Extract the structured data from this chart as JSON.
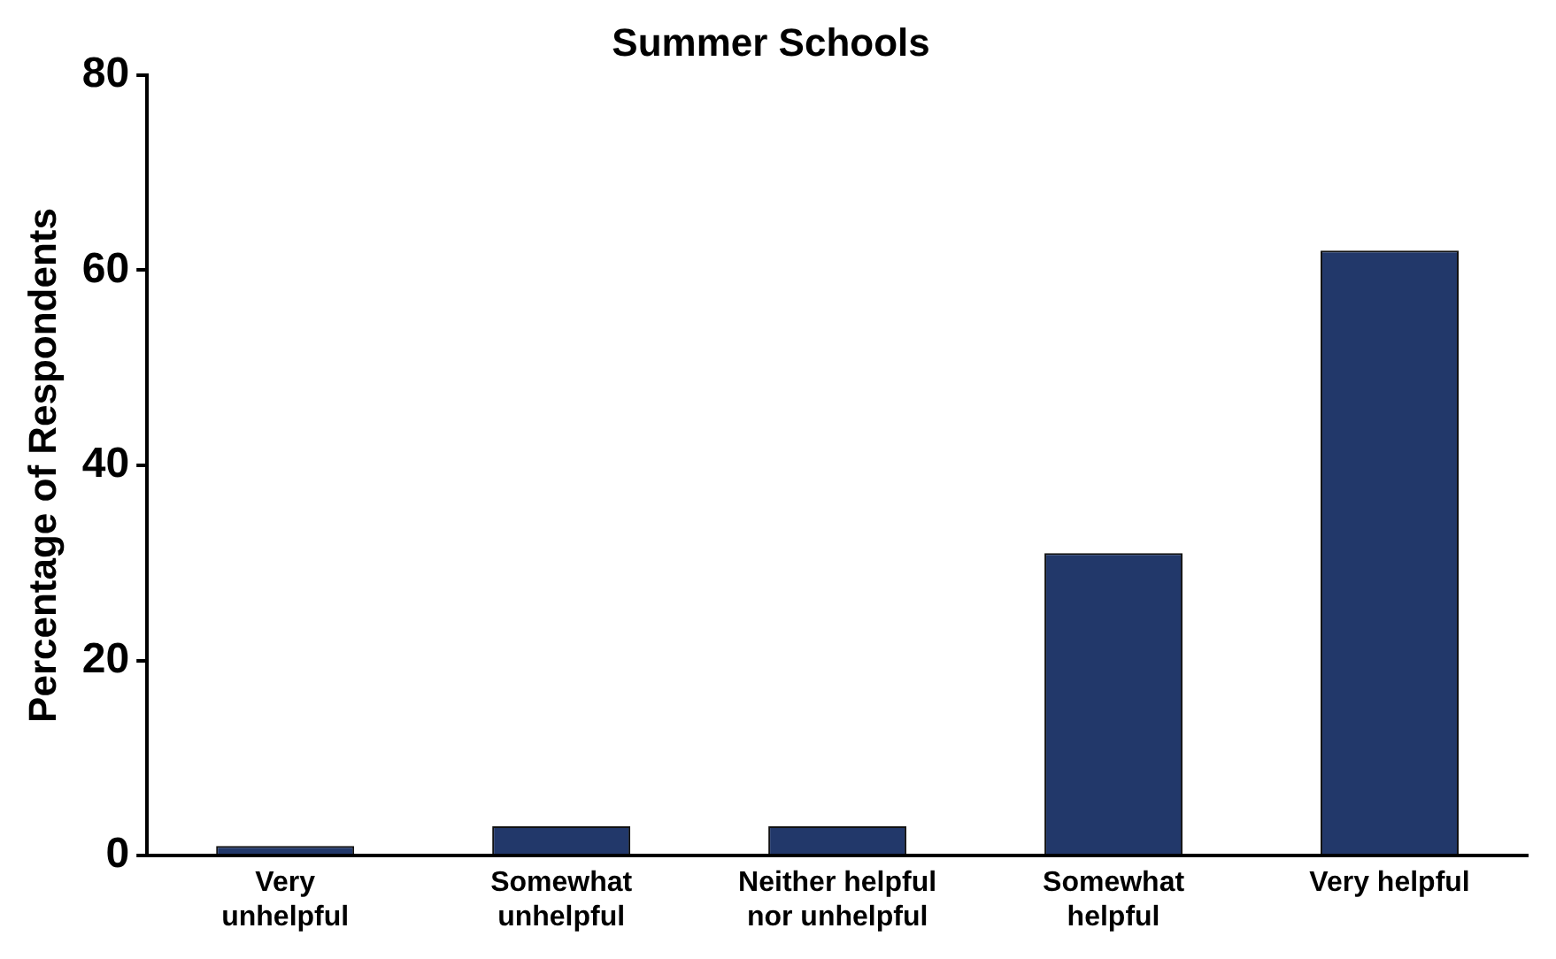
{
  "chart_data": {
    "type": "bar",
    "title": "Summer Schools",
    "ylabel": "Percentage of Respondents",
    "categories": [
      "Very unhelpful",
      "Somewhat unhelpful",
      "Neither helpful nor unhelpful",
      "Somewhat helpful",
      "Very helpful"
    ],
    "values": [
      1,
      3,
      3,
      31,
      62
    ],
    "color": "#22386a",
    "ylim": [
      0,
      80
    ],
    "yticks": [
      0,
      20,
      40,
      60,
      80
    ],
    "grid": false,
    "legend": false
  }
}
